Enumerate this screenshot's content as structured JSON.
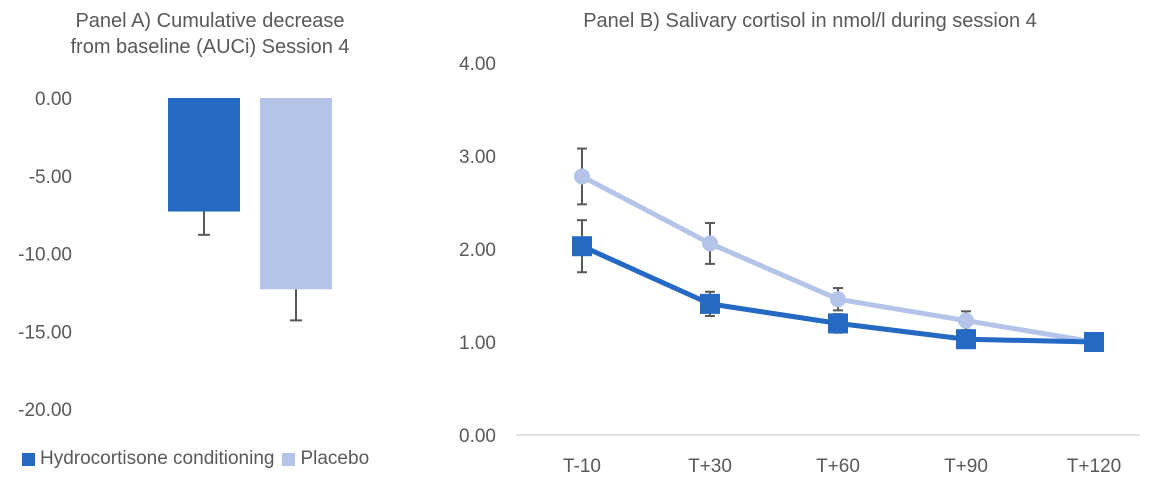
{
  "colors": {
    "hydro": "#2469c3",
    "placebo": "#b4c3e8",
    "error": "#595959"
  },
  "chart_data": [
    {
      "type": "bar",
      "title": "Panel A) Cumulative decrease from baseline (AUCi) Session 4",
      "title_lines": [
        "Panel A) Cumulative decrease",
        "from baseline (AUCi) Session 4"
      ],
      "ylim": [
        -20,
        0
      ],
      "yticks": [
        "0.00",
        "-5.00",
        "-10.00",
        "-15.00",
        "-20.00"
      ],
      "ytick_values": [
        0,
        -5,
        -10,
        -15,
        -20
      ],
      "series": [
        {
          "name": "Hydrocortisone conditioning",
          "values": [
            -7.3
          ],
          "error": [
            1.5
          ]
        },
        {
          "name": "Placebo",
          "values": [
            -12.3
          ],
          "error": [
            2.0
          ]
        }
      ],
      "legend_position": "bottom-left"
    },
    {
      "type": "line",
      "title": "Panel B) Salivary cortisol in nmol/l during session 4",
      "categories": [
        "T-10",
        "T+30",
        "T+60",
        "T+90",
        "T+120"
      ],
      "ylim": [
        0,
        4
      ],
      "yticks": [
        "0.00",
        "1.00",
        "2.00",
        "3.00",
        "4.00"
      ],
      "ytick_values": [
        0,
        1,
        2,
        3,
        4
      ],
      "series": [
        {
          "name": "Hydrocortisone conditioning",
          "marker": "square",
          "values": [
            2.03,
            1.41,
            1.2,
            1.03,
            1.0
          ],
          "error": [
            0.28,
            0.13,
            0.1,
            0.06,
            0.06
          ]
        },
        {
          "name": "Placebo",
          "marker": "circle",
          "values": [
            2.78,
            2.06,
            1.46,
            1.23,
            1.0
          ],
          "error": [
            0.3,
            0.22,
            0.12,
            0.1,
            0.04
          ]
        }
      ],
      "grid": false
    }
  ]
}
